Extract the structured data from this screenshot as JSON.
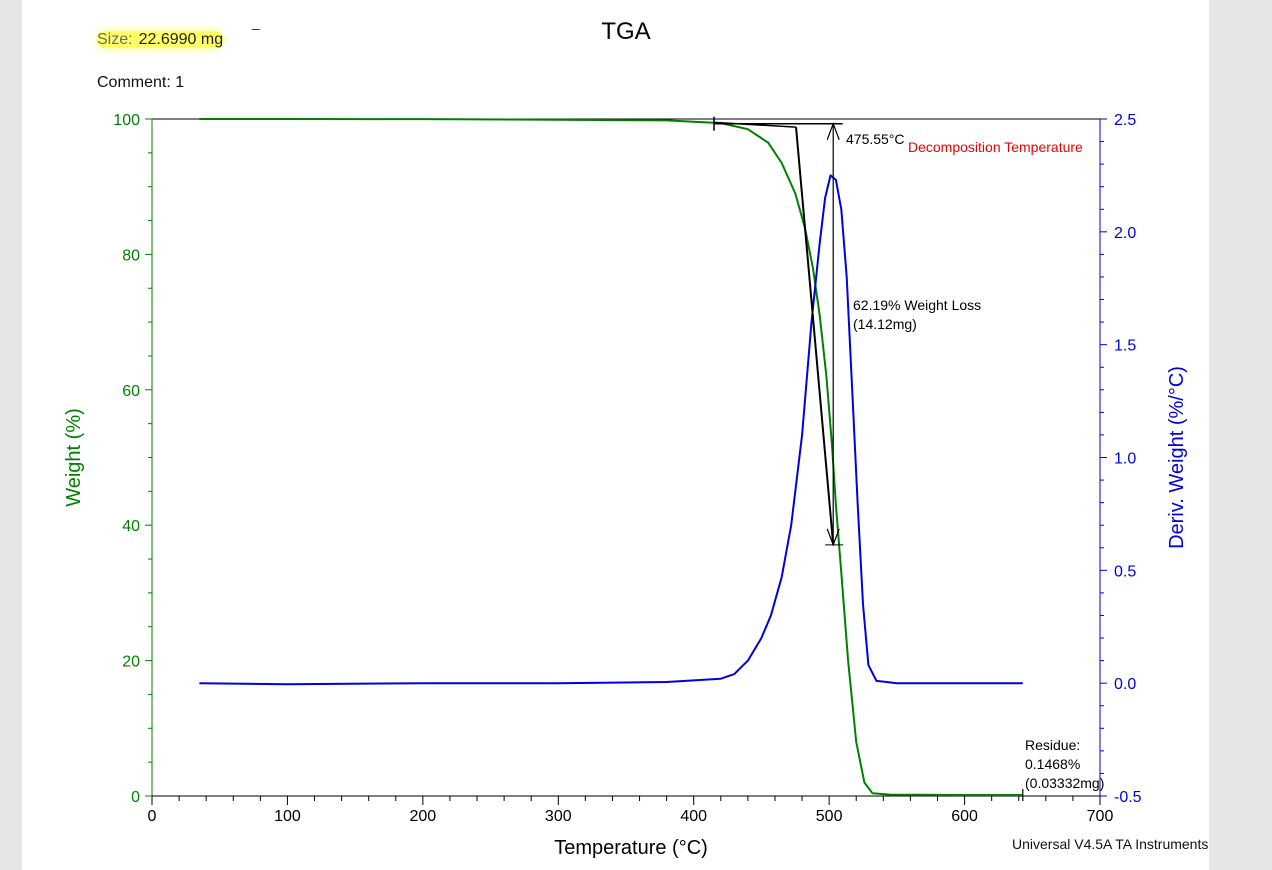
{
  "header": {
    "size_label": "Size:",
    "size_value": "22.6990 mg",
    "dash": "–",
    "comment": "Comment: 1"
  },
  "footer": {
    "software": "Universal V4.5A TA Instruments"
  },
  "colors": {
    "weight": "#008000",
    "deriv": "#0000e0",
    "annotation": "#ee0000",
    "marker": "#000000"
  },
  "chart_data": {
    "type": "line",
    "title": "TGA",
    "xlabel": "Temperature (°C)",
    "ylabel": "Weight (%)",
    "y2label": "Deriv. Weight (%/°C)",
    "xlim": [
      0,
      700
    ],
    "ylim": [
      0,
      100
    ],
    "y2lim": [
      -0.5,
      2.5
    ],
    "x_ticks": [
      0,
      100,
      200,
      300,
      400,
      500,
      600,
      700
    ],
    "x_tick_labels": [
      "0",
      "100",
      "200",
      "300",
      "400",
      "500",
      "600",
      "700"
    ],
    "y_ticks": [
      0,
      20,
      40,
      60,
      80,
      100
    ],
    "y_tick_labels": [
      "0",
      "20",
      "40",
      "60",
      "80",
      "100"
    ],
    "y2_ticks": [
      -0.5,
      0.0,
      0.5,
      1.0,
      1.5,
      2.0,
      2.5
    ],
    "y2_tick_labels": [
      "-0.5",
      "0.0",
      "0.5",
      "1.0",
      "1.5",
      "2.0",
      "2.5"
    ],
    "series": [
      {
        "axis": "left",
        "color": "#008000",
        "points": [
          [
            35,
            100
          ],
          [
            100,
            100
          ],
          [
            200,
            99.99
          ],
          [
            300,
            99.9
          ],
          [
            380,
            99.8
          ],
          [
            420,
            99.4
          ],
          [
            440,
            98.5
          ],
          [
            455,
            96.5
          ],
          [
            465,
            93.5
          ],
          [
            475,
            89
          ],
          [
            482,
            84
          ],
          [
            488,
            78
          ],
          [
            493,
            71
          ],
          [
            498,
            62
          ],
          [
            502,
            52
          ],
          [
            505,
            43
          ],
          [
            509,
            33
          ],
          [
            514,
            20
          ],
          [
            520,
            8
          ],
          [
            526,
            2
          ],
          [
            532,
            0.4
          ],
          [
            545,
            0.2
          ],
          [
            600,
            0.15
          ],
          [
            643,
            0.1468
          ]
        ]
      },
      {
        "axis": "right",
        "color": "#0000e0",
        "points": [
          [
            35,
            0.0
          ],
          [
            100,
            -0.005
          ],
          [
            200,
            0.0
          ],
          [
            300,
            0.0
          ],
          [
            380,
            0.005
          ],
          [
            420,
            0.02
          ],
          [
            430,
            0.04
          ],
          [
            440,
            0.1
          ],
          [
            450,
            0.2
          ],
          [
            457,
            0.3
          ],
          [
            465,
            0.47
          ],
          [
            472,
            0.7
          ],
          [
            480,
            1.1
          ],
          [
            487,
            1.6
          ],
          [
            493,
            1.95
          ],
          [
            497,
            2.15
          ],
          [
            501,
            2.25
          ],
          [
            505,
            2.23
          ],
          [
            509,
            2.1
          ],
          [
            513,
            1.8
          ],
          [
            517,
            1.3
          ],
          [
            521,
            0.8
          ],
          [
            525,
            0.35
          ],
          [
            529,
            0.08
          ],
          [
            535,
            0.01
          ],
          [
            550,
            0.0
          ],
          [
            643,
            0.0
          ]
        ]
      }
    ],
    "annotations": {
      "onset_temp": "475.55°C",
      "onset_label": "Decomposition Temperature",
      "weight_loss_line1": "62.19% Weight Loss",
      "weight_loss_line2": "(14.12mg)",
      "residue_line1": "Residue:",
      "residue_line2": "0.1468%",
      "residue_line3": "(0.03332mg)",
      "residue_temp": 643,
      "residue_value": 0.1468,
      "loss_temp": 503,
      "loss_top": 99.3,
      "loss_bottom": 37.1,
      "onset_tangent_1": [
        [
          415,
          99.5
        ],
        [
          475.55,
          98.8
        ]
      ],
      "onset_tangent_2": [
        [
          475.55,
          98.8
        ],
        [
          503,
          37.1
        ]
      ]
    }
  }
}
